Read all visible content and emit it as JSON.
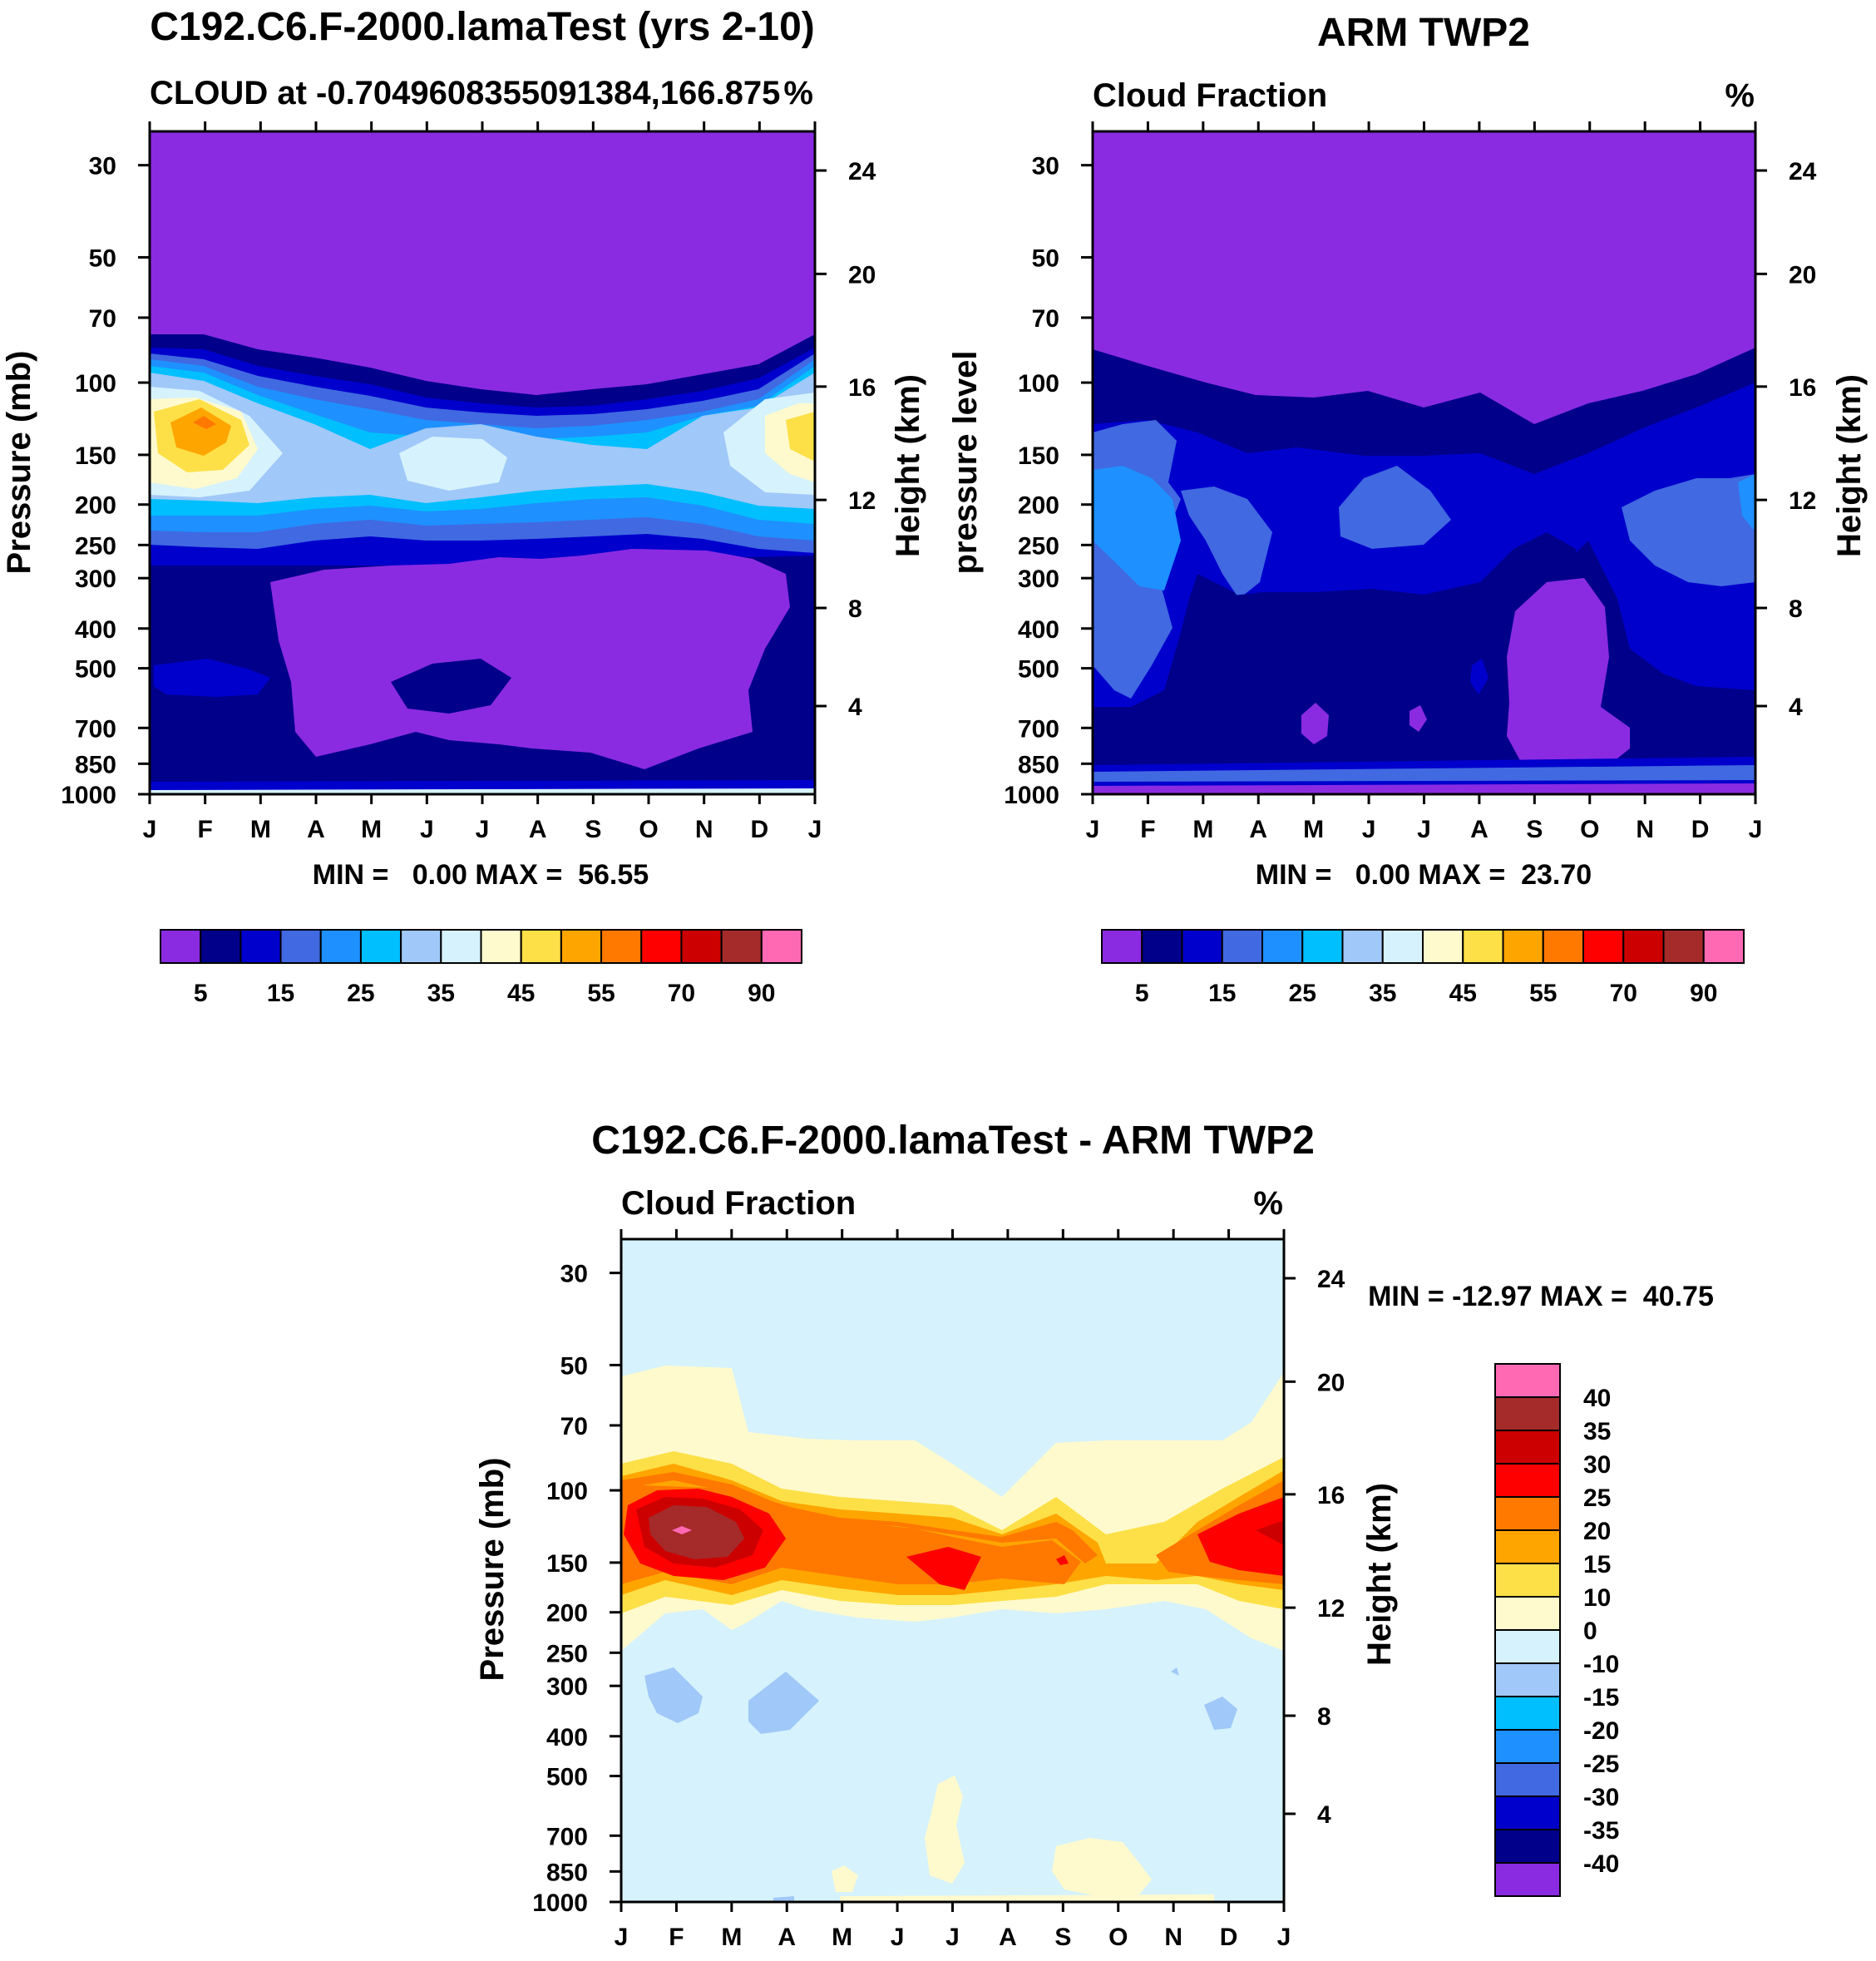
{
  "chart_data": [
    {
      "type": "filled-contour",
      "id": "model",
      "title": "C192.C6.F-2000.lamaTest (yrs 2-10)",
      "subtitle_left": "CLOUD at -0.7049608355091384,166.875",
      "subtitle_right": "%",
      "ylabel": "Pressure (mb)",
      "ylabel_right": "Height (km)",
      "x_ticks": [
        "J",
        "F",
        "M",
        "A",
        "M",
        "J",
        "J",
        "A",
        "S",
        "O",
        "N",
        "D",
        "J"
      ],
      "y_ticks": [
        "30",
        "50",
        "70",
        "100",
        "150",
        "200",
        "250",
        "300",
        "400",
        "500",
        "700",
        "850",
        "1000"
      ],
      "y_ticks_right": [
        "24",
        "20",
        "16",
        "12",
        "8",
        "4"
      ],
      "stats": "MIN =   0.00 MAX =  56.55",
      "min": 0.0,
      "max": 56.55,
      "colorbar_ticks": [
        "5",
        "15",
        "25",
        "35",
        "45",
        "55",
        "70",
        "90"
      ]
    },
    {
      "type": "filled-contour",
      "id": "obs",
      "title": "ARM TWP2",
      "subtitle_left": "Cloud Fraction",
      "subtitle_right": "%",
      "ylabel": "pressure level",
      "ylabel_right": "Height (km)",
      "x_ticks": [
        "J",
        "F",
        "M",
        "A",
        "M",
        "J",
        "J",
        "A",
        "S",
        "O",
        "N",
        "D",
        "J"
      ],
      "y_ticks": [
        "30",
        "50",
        "70",
        "100",
        "150",
        "200",
        "250",
        "300",
        "400",
        "500",
        "700",
        "850",
        "1000"
      ],
      "y_ticks_right": [
        "24",
        "20",
        "16",
        "12",
        "8",
        "4"
      ],
      "stats": "MIN =   0.00 MAX =  23.70",
      "min": 0.0,
      "max": 23.7,
      "colorbar_ticks": [
        "5",
        "15",
        "25",
        "35",
        "45",
        "55",
        "70",
        "90"
      ]
    },
    {
      "type": "filled-contour",
      "id": "diff",
      "title": "C192.C6.F-2000.lamaTest - ARM TWP2",
      "subtitle_left": "Cloud Fraction",
      "subtitle_right": "%",
      "ylabel": "Pressure (mb)",
      "ylabel_right": "Height (km)",
      "x_ticks": [
        "J",
        "F",
        "M",
        "A",
        "M",
        "J",
        "J",
        "A",
        "S",
        "O",
        "N",
        "D",
        "J"
      ],
      "y_ticks": [
        "30",
        "50",
        "70",
        "100",
        "150",
        "200",
        "250",
        "300",
        "400",
        "500",
        "700",
        "850",
        "1000"
      ],
      "y_ticks_right": [
        "24",
        "20",
        "16",
        "12",
        "8",
        "4"
      ],
      "stats": "MIN = -12.97 MAX =  40.75",
      "min": -12.97,
      "max": 40.75,
      "colorbar_ticks": [
        "40",
        "35",
        "30",
        "25",
        "20",
        "15",
        "10",
        "0",
        "-10",
        "-15",
        "-20",
        "-25",
        "-30",
        "-35",
        "-40"
      ]
    }
  ],
  "palette": {
    "abs": [
      "#8a2be2",
      "#00008b",
      "#0000cd",
      "#4169e1",
      "#1e90ff",
      "#00bfff",
      "#a0c8f8",
      "#d6f2fc",
      "#fffacd",
      "#fde047",
      "#ffa500",
      "#ff7800",
      "#ff0000",
      "#cd0000",
      "#a52a2a",
      "#ff69b4"
    ],
    "diff": [
      "#8a2be2",
      "#00008b",
      "#0000cd",
      "#4169e1",
      "#1e90ff",
      "#00bfff",
      "#a0c8f8",
      "#d6f2fc",
      "#fffacd",
      "#fde047",
      "#ffa500",
      "#ff7800",
      "#ff0000",
      "#cd0000",
      "#a52a2a",
      "#ff69b4"
    ]
  }
}
